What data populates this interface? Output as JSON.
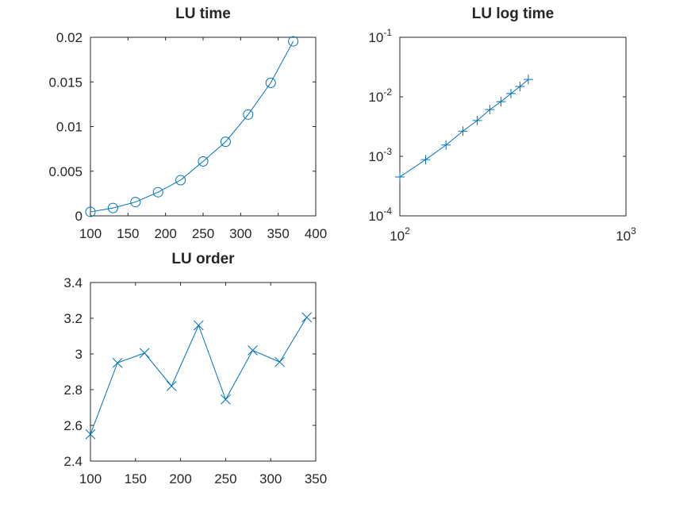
{
  "chart_data": [
    {
      "type": "line",
      "title": "LU time",
      "xlabel": "",
      "ylabel": "",
      "xlim": [
        100,
        400
      ],
      "ylim": [
        0,
        0.02
      ],
      "xscale": "linear",
      "yscale": "linear",
      "grid": false,
      "marker": "circle",
      "color": "#0072BD",
      "x_ticks": [
        100,
        150,
        200,
        250,
        300,
        350,
        400
      ],
      "x_tick_labels": [
        "100",
        "150",
        "200",
        "250",
        "300",
        "350",
        "400"
      ],
      "y_ticks": [
        0,
        0.005,
        0.01,
        0.015,
        0.02
      ],
      "y_tick_labels": [
        "0",
        "0.005",
        "0.01",
        "0.015",
        "0.02"
      ],
      "series": [
        {
          "x": [
            100,
            130,
            160,
            190,
            220,
            250,
            280,
            310,
            340,
            370
          ],
          "values": [
            0.00045,
            0.00088,
            0.00155,
            0.00265,
            0.004,
            0.0061,
            0.0083,
            0.01135,
            0.0149,
            0.01955
          ]
        }
      ]
    },
    {
      "type": "line",
      "title": "LU log time",
      "xlabel": "",
      "ylabel": "",
      "xlim": [
        100,
        1000
      ],
      "ylim": [
        0.0001,
        0.1
      ],
      "xscale": "log",
      "yscale": "log",
      "grid": false,
      "marker": "plus",
      "color": "#0072BD",
      "x_ticks": [
        100,
        1000
      ],
      "x_tick_labels": [
        {
          "base": "10",
          "exp": "2"
        },
        {
          "base": "10",
          "exp": "3"
        }
      ],
      "y_ticks": [
        0.0001,
        0.001,
        0.01,
        0.1
      ],
      "y_tick_labels": [
        {
          "base": "10",
          "exp": "-4"
        },
        {
          "base": "10",
          "exp": "-3"
        },
        {
          "base": "10",
          "exp": "-2"
        },
        {
          "base": "10",
          "exp": "-1"
        }
      ],
      "series": [
        {
          "x": [
            100,
            130,
            160,
            190,
            220,
            250,
            280,
            310,
            340,
            370
          ],
          "values": [
            0.00045,
            0.00088,
            0.00155,
            0.00265,
            0.004,
            0.0061,
            0.0083,
            0.01135,
            0.0149,
            0.01955
          ]
        }
      ]
    },
    {
      "type": "line",
      "title": "LU order",
      "xlabel": "",
      "ylabel": "",
      "xlim": [
        100,
        350
      ],
      "ylim": [
        2.4,
        3.4
      ],
      "xscale": "linear",
      "yscale": "linear",
      "grid": false,
      "marker": "x",
      "color": "#0072BD",
      "x_ticks": [
        100,
        150,
        200,
        250,
        300,
        350
      ],
      "x_tick_labels": [
        "100",
        "150",
        "200",
        "250",
        "300",
        "350"
      ],
      "y_ticks": [
        2.4,
        2.6,
        2.8,
        3.0,
        3.2,
        3.4
      ],
      "y_tick_labels": [
        "2.4",
        "2.6",
        "2.8",
        "3",
        "3.2",
        "3.4"
      ],
      "series": [
        {
          "x": [
            100,
            130,
            160,
            190,
            220,
            250,
            280,
            310,
            340
          ],
          "values": [
            2.55,
            2.95,
            3.005,
            2.82,
            3.16,
            2.745,
            3.02,
            2.955,
            3.205
          ]
        }
      ]
    }
  ]
}
